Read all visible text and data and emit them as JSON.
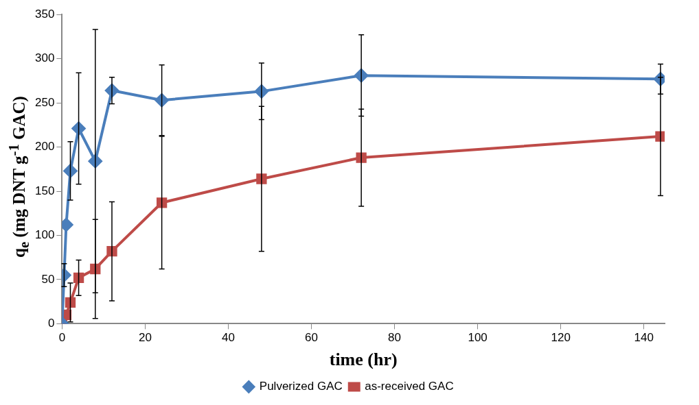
{
  "chart_data": {
    "type": "line",
    "xlabel": "time (hr)",
    "ylabel": "q$_{e}$ (mg DNT g$^{-1}$ GAC)",
    "x": [
      0,
      0.5,
      1,
      2,
      4,
      8,
      12,
      24,
      48,
      72,
      144
    ],
    "xlim": [
      0,
      145
    ],
    "xticks": [
      0,
      20,
      40,
      60,
      80,
      100,
      120,
      140
    ],
    "ylim": [
      0,
      350
    ],
    "yticks": [
      0,
      50,
      100,
      150,
      200,
      250,
      300,
      350
    ],
    "grid": false,
    "legend": "bottom",
    "line_style": "solid",
    "series": [
      {
        "name": "Pulverized GAC",
        "color": "#4a7ebb",
        "marker": "diamond",
        "values": [
          0,
          55,
          112,
          173,
          221,
          184,
          264,
          253,
          263,
          281,
          277
        ],
        "errors": [
          null,
          13,
          null,
          33,
          63,
          149,
          15,
          40,
          32,
          46,
          17
        ]
      },
      {
        "name": "as-received GAC",
        "color": "#be4b48",
        "marker": "square",
        "values": [
          0,
          null,
          10,
          24,
          52,
          62,
          82,
          137,
          164,
          188,
          212
        ],
        "errors": [
          null,
          null,
          null,
          22,
          20,
          56,
          56,
          75,
          82,
          55,
          67
        ]
      }
    ]
  }
}
